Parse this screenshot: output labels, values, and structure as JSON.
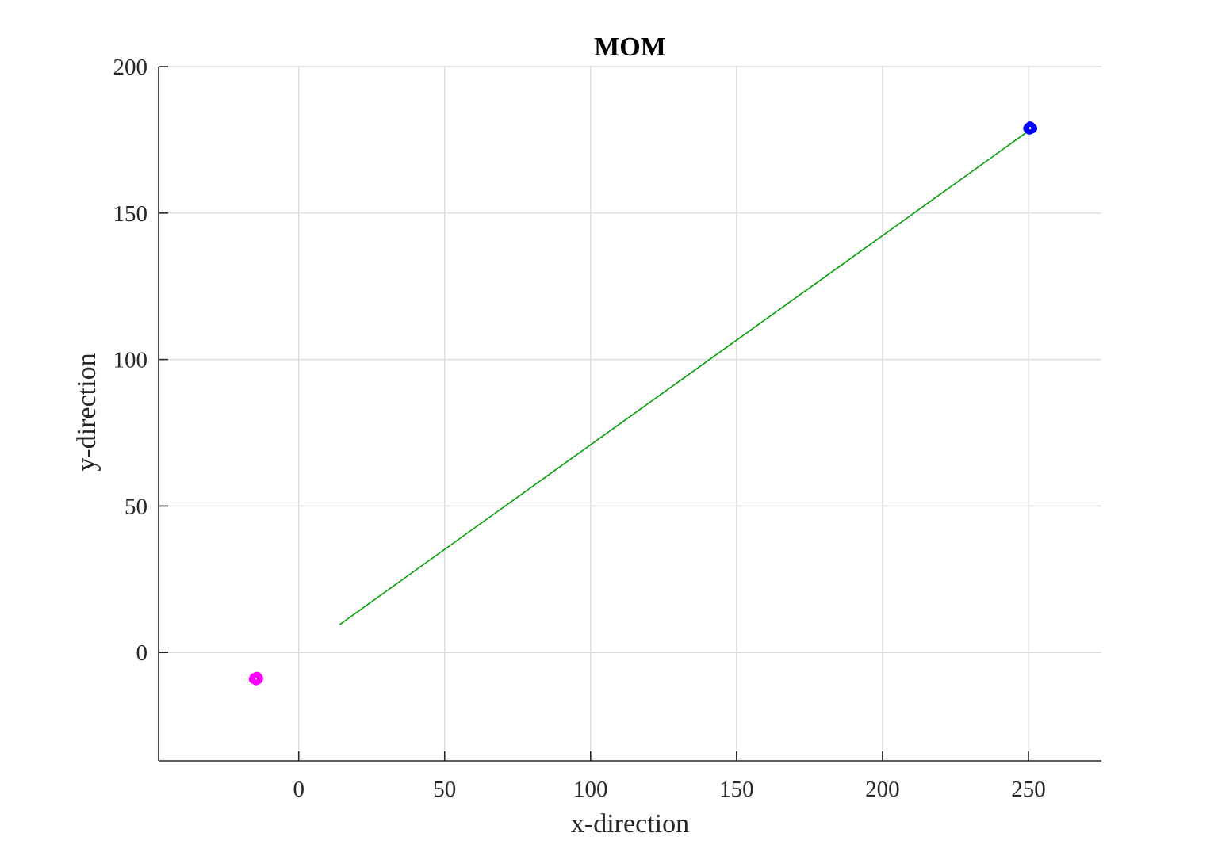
{
  "chart_data": {
    "type": "scatter",
    "title": "MOM",
    "xlabel": "x-direction",
    "ylabel": "y-direction",
    "xlim": [
      -48,
      275
    ],
    "ylim": [
      -37,
      200
    ],
    "xticks": [
      0,
      50,
      100,
      150,
      200,
      250
    ],
    "yticks": [
      0,
      50,
      100,
      150,
      200
    ],
    "xtick_labels": [
      "0",
      "50",
      "100",
      "150",
      "200",
      "250"
    ],
    "ytick_labels": [
      "0",
      "50",
      "100",
      "150",
      "200"
    ],
    "grid": true,
    "series": [
      {
        "type": "line",
        "color": "#00a000",
        "x": [
          14,
          250
        ],
        "y": [
          9.5,
          178
        ]
      },
      {
        "type": "scatter",
        "color": "#ff00ff",
        "x": [
          -15,
          -14.5,
          -14,
          -15.2,
          -14.6,
          -13.9,
          -14.3,
          -15.4,
          -14.8
        ],
        "y": [
          -9,
          -8.5,
          -9.2,
          -8.7,
          -9.5,
          -8.8,
          -8.3,
          -9.1,
          -8.9
        ]
      },
      {
        "type": "scatter",
        "color": "#0000ff",
        "x": [
          250,
          250.5,
          251,
          250.2,
          250.8,
          251.3,
          250.6,
          249.9,
          250.4
        ],
        "y": [
          179,
          179.4,
          178.8,
          178.6,
          179.2,
          178.9,
          179.6,
          178.9,
          178.5
        ]
      }
    ]
  }
}
